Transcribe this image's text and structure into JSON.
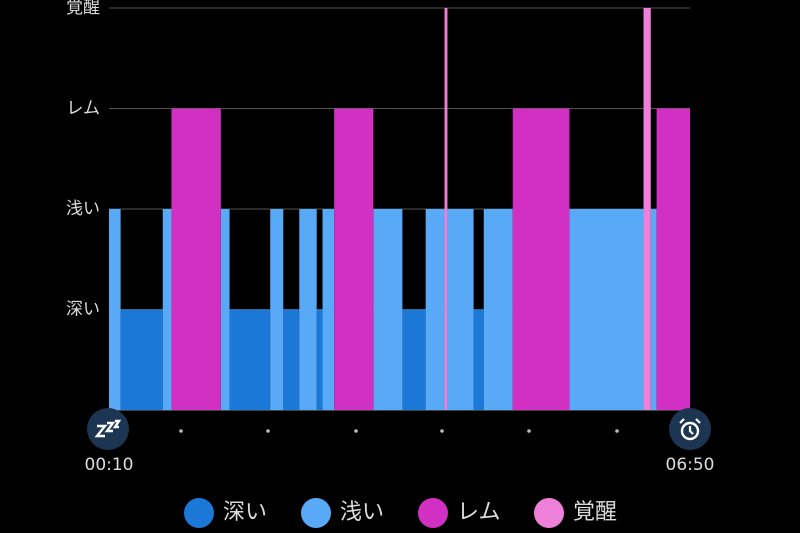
{
  "chart_data": {
    "type": "sleep-stages",
    "xlim": [
      0,
      400
    ],
    "xticks": [
      {
        "value": 0,
        "label": "00:10"
      },
      {
        "value": 400,
        "label": "06:50"
      }
    ],
    "ylim": [
      0,
      4
    ],
    "yticks": [
      {
        "value": 1,
        "label": "深い"
      },
      {
        "value": 2,
        "label": "浅い"
      },
      {
        "value": 3,
        "label": "レム"
      },
      {
        "value": 4,
        "label": "覚醒"
      }
    ],
    "grid": true,
    "series": [
      {
        "name": "深い",
        "color": "#1b78d6",
        "value": 1,
        "segments": [
          [
            8,
            37
          ],
          [
            83,
            111
          ],
          [
            120,
            131
          ],
          [
            143,
            147
          ],
          [
            202,
            218
          ],
          [
            251,
            258
          ]
        ]
      },
      {
        "name": "浅い",
        "color": "#58aaf6",
        "value": 2,
        "segments": [
          [
            0,
            8
          ],
          [
            37,
            43
          ],
          [
            77,
            83
          ],
          [
            111,
            120
          ],
          [
            131,
            143
          ],
          [
            147,
            155
          ],
          [
            182,
            202
          ],
          [
            218,
            231
          ],
          [
            233,
            251
          ],
          [
            258,
            278
          ],
          [
            317,
            368
          ],
          [
            373,
            377
          ]
        ]
      },
      {
        "name": "レム",
        "color": "#d22fc3",
        "value": 3,
        "segments": [
          [
            43,
            77
          ],
          [
            155,
            182
          ],
          [
            278,
            317
          ],
          [
            377,
            400
          ]
        ]
      },
      {
        "name": "覚醒",
        "color": "#ee80da",
        "value": 4,
        "segments": [
          [
            231,
            233
          ],
          [
            368,
            373
          ]
        ]
      }
    ]
  }
}
